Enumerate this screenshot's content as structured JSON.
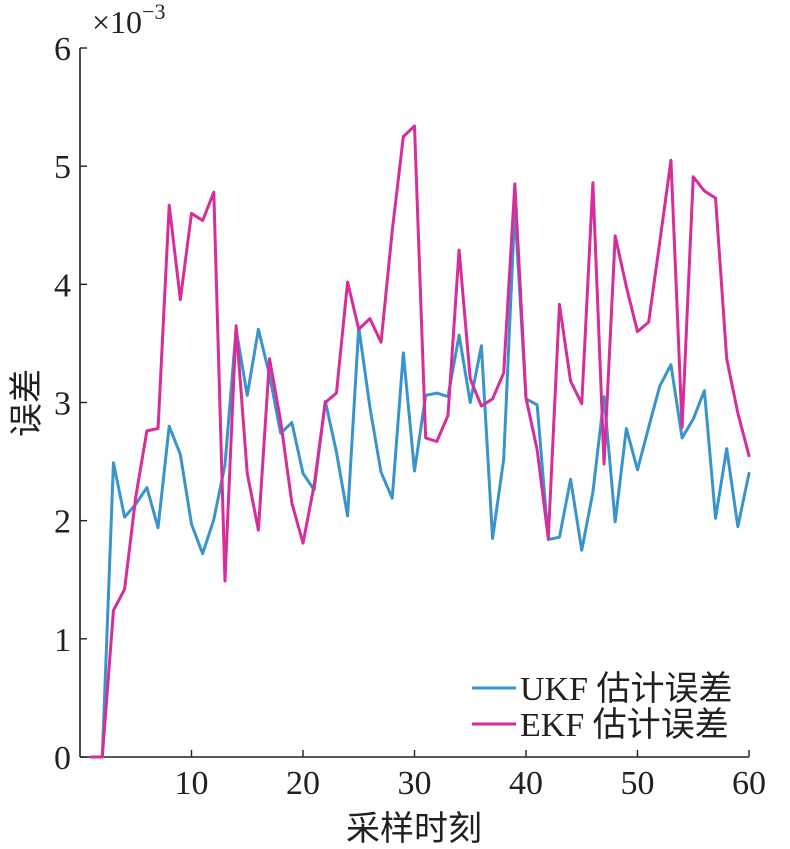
{
  "chart_data": {
    "type": "line",
    "xlabel": "采样时刻",
    "ylabel": "误差",
    "y_multiplier": "×10",
    "y_multiplier_exponent": "−3",
    "xlim": [
      0,
      60
    ],
    "ylim": [
      0,
      6
    ],
    "xticks": [
      "10",
      "20",
      "30",
      "40",
      "50",
      "60"
    ],
    "yticks": [
      "0",
      "1",
      "2",
      "3",
      "4",
      "5",
      "6"
    ],
    "grid": false,
    "legend_position": "bottom-right",
    "x": [
      1,
      2,
      3,
      4,
      5,
      6,
      7,
      8,
      9,
      10,
      11,
      12,
      13,
      14,
      15,
      16,
      17,
      18,
      19,
      20,
      21,
      22,
      23,
      24,
      25,
      26,
      27,
      28,
      29,
      30,
      31,
      32,
      33,
      34,
      35,
      36,
      37,
      38,
      39,
      40,
      41,
      42,
      43,
      44,
      45,
      46,
      47,
      48,
      49,
      50,
      51,
      52,
      53,
      54,
      55,
      56,
      57,
      58,
      59,
      60
    ],
    "series": [
      {
        "name": "UKF 估计误差",
        "color": "#3a94cc",
        "values": [
          0,
          0,
          2.49,
          2.03,
          2.14,
          2.28,
          1.94,
          2.8,
          2.56,
          1.97,
          1.72,
          2.01,
          2.47,
          3.62,
          3.06,
          3.62,
          3.23,
          2.74,
          2.83,
          2.4,
          2.26,
          3.01,
          2.58,
          2.04,
          3.64,
          2.96,
          2.41,
          2.19,
          3.42,
          2.42,
          3.06,
          3.08,
          3.05,
          3.57,
          3.0,
          3.48,
          1.85,
          2.52,
          4.64,
          3.03,
          2.98,
          1.84,
          1.86,
          2.35,
          1.75,
          2.24,
          3.05,
          1.99,
          2.78,
          2.43,
          2.79,
          3.14,
          3.32,
          2.7,
          2.86,
          3.1,
          2.02,
          2.61,
          1.95,
          2.4
        ]
      },
      {
        "name": "EKF 估计误差",
        "color": "#d62d9b",
        "values": [
          0,
          0,
          1.24,
          1.42,
          2.2,
          2.76,
          2.78,
          4.67,
          3.87,
          4.6,
          4.54,
          4.78,
          1.49,
          3.65,
          2.4,
          1.92,
          3.37,
          2.84,
          2.15,
          1.81,
          2.3,
          3.0,
          3.08,
          4.02,
          3.62,
          3.71,
          3.51,
          4.45,
          5.25,
          5.34,
          2.7,
          2.67,
          2.89,
          4.29,
          3.2,
          2.97,
          3.03,
          3.25,
          4.85,
          3.04,
          2.6,
          1.85,
          3.83,
          3.18,
          2.99,
          4.86,
          2.48,
          4.41,
          3.98,
          3.6,
          3.68,
          4.36,
          5.05,
          2.79,
          4.91,
          4.79,
          4.73,
          3.37,
          2.91,
          2.55
        ]
      }
    ]
  }
}
